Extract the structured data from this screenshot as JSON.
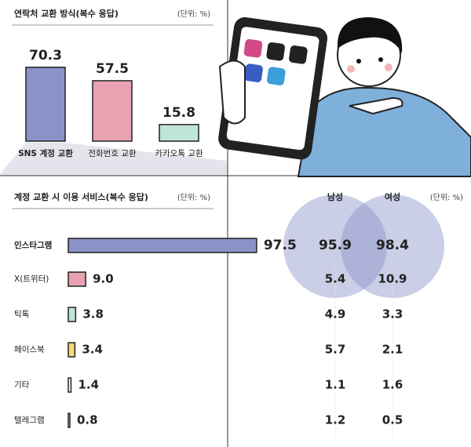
{
  "chart_data": [
    {
      "type": "bar",
      "title": "연락처 교환 방식(복수 응답)",
      "unit": "(단위: %)",
      "categories": [
        "SNS 계정 교환",
        "전화번호 교환",
        "카카오톡 교환"
      ],
      "values": [
        70.3,
        57.5,
        15.8
      ],
      "colors": [
        "#8a92c8",
        "#e8a2b1",
        "#bfe4d9"
      ]
    },
    {
      "type": "hbar",
      "title": "계정 교환 시 이용 서비스(복수 응답)",
      "unit": "(단위: %)",
      "categories": [
        "인스타그램",
        "X(트위터)",
        "틱톡",
        "페이스북",
        "기타",
        "텔레그램"
      ],
      "values": [
        97.5,
        9,
        3.8,
        3.4,
        1.4,
        0.8
      ],
      "value_labels": [
        "97.5",
        "9.0",
        "3.8",
        "3.4",
        "1.4",
        "0.8"
      ],
      "colors": [
        "#8a92c8",
        "#e8a2b1",
        "#bfe4d9",
        "#f6d978",
        "#ffffff",
        "#ffffff"
      ],
      "groups": [
        {
          "name": "남성",
          "values": [
            95.9,
            5.4,
            4.9,
            5.7,
            1.1,
            1.2
          ]
        },
        {
          "name": "여성",
          "values": [
            98.4,
            10.9,
            3.3,
            2.1,
            1.6,
            0.5
          ]
        }
      ]
    }
  ]
}
